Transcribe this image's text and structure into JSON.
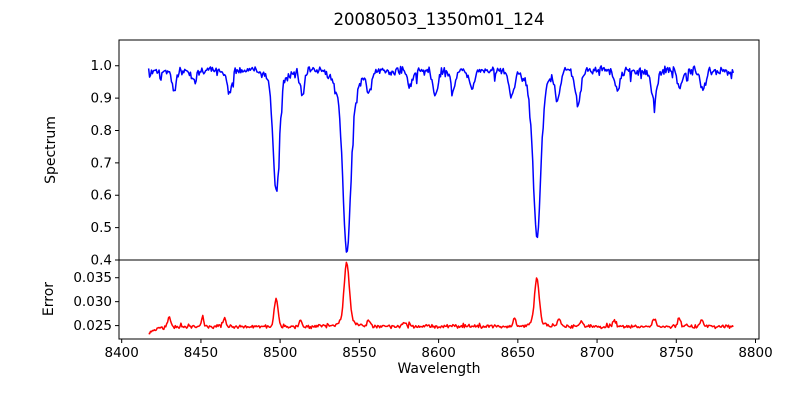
{
  "figure": {
    "background": "#ffffff",
    "axis_color": "#000000",
    "tick_label_color": "#000000"
  },
  "chart_data": {
    "type": "line",
    "title": "20080503_1350m01_124",
    "xlabel": "Wavelength",
    "legend": "none",
    "grid": false,
    "xlim": [
      8398.3,
      8802.2
    ],
    "xticks": [
      8400,
      8450,
      8500,
      8550,
      8600,
      8650,
      8700,
      8750,
      8800
    ],
    "xtick_labels": [
      "8400",
      "8450",
      "8500",
      "8550",
      "8600",
      "8650",
      "8700",
      "8750",
      "8800"
    ],
    "x_data_range": [
      8417,
      8786
    ],
    "x_step": 0.6,
    "panels": [
      {
        "id": "spectrum",
        "ylabel": "Spectrum",
        "line_color": "#0000ff",
        "ylim": [
          0.4,
          1.0795
        ],
        "yticks": [
          0.4,
          0.5,
          0.6,
          0.7,
          0.8,
          0.9,
          1.0
        ],
        "ytick_labels": [
          "0.4",
          "0.5",
          "0.6",
          "0.7",
          "0.8",
          "0.9",
          "1.0"
        ],
        "continuum": 0.985,
        "noise_amp": 0.016,
        "spike_prob": 0.07,
        "spike_amp": 0.035,
        "spike_sign": -1,
        "edge_ramp": {
          "amp": 0,
          "scale": 1
        },
        "features": [
          {
            "c": 8433,
            "a": -0.055,
            "w": 1.6
          },
          {
            "c": 8446,
            "a": -0.04,
            "w": 1.4
          },
          {
            "c": 8468,
            "a": -0.065,
            "w": 1.6
          },
          {
            "c": 8497.5,
            "a": -0.33,
            "w": 1.9
          },
          {
            "c": 8497.5,
            "a": -0.045,
            "w": 5.0
          },
          {
            "c": 8514,
            "a": -0.07,
            "w": 1.5
          },
          {
            "c": 8542.1,
            "a": -0.46,
            "w": 2.4
          },
          {
            "c": 8542.1,
            "a": -0.095,
            "w": 6.0
          },
          {
            "c": 8556,
            "a": -0.065,
            "w": 1.5
          },
          {
            "c": 8582,
            "a": -0.05,
            "w": 1.5
          },
          {
            "c": 8598,
            "a": -0.07,
            "w": 1.6
          },
          {
            "c": 8609,
            "a": -0.07,
            "w": 1.4
          },
          {
            "c": 8621,
            "a": -0.055,
            "w": 1.5
          },
          {
            "c": 8646,
            "a": -0.085,
            "w": 1.6
          },
          {
            "c": 8662.1,
            "a": -0.44,
            "w": 2.3
          },
          {
            "c": 8662.1,
            "a": -0.075,
            "w": 5.5
          },
          {
            "c": 8675,
            "a": -0.085,
            "w": 1.6
          },
          {
            "c": 8688,
            "a": -0.1,
            "w": 1.8
          },
          {
            "c": 8713,
            "a": -0.065,
            "w": 1.5
          },
          {
            "c": 8736,
            "a": -0.095,
            "w": 1.7
          },
          {
            "c": 8752,
            "a": -0.055,
            "w": 1.4
          },
          {
            "c": 8767,
            "a": -0.06,
            "w": 1.5
          }
        ],
        "approx_min_values": {
          "8498": 0.61,
          "8542": 0.43,
          "8662": 0.47
        },
        "continuum_band": [
          0.95,
          1.03
        ]
      },
      {
        "id": "error",
        "ylabel": "Error",
        "line_color": "#ff0000",
        "ylim": [
          0.0222,
          0.0387
        ],
        "yticks": [
          0.025,
          0.03,
          0.035
        ],
        "ytick_labels": [
          "0.025",
          "0.030",
          "0.035"
        ],
        "continuum": 0.0248,
        "noise_amp": 0.00045,
        "spike_prob": 0.06,
        "spike_amp": 0.0011,
        "spike_sign": 1,
        "edge_ramp": {
          "amp": -0.0014,
          "scale": 5
        },
        "features": [
          {
            "c": 8430,
            "a": 0.0021,
            "w": 0.9
          },
          {
            "c": 8451,
            "a": 0.0013,
            "w": 0.9
          },
          {
            "c": 8465,
            "a": 0.0016,
            "w": 0.9
          },
          {
            "c": 8497.5,
            "a": 0.0058,
            "w": 1.2
          },
          {
            "c": 8513,
            "a": 0.0011,
            "w": 0.9
          },
          {
            "c": 8542,
            "a": 0.0124,
            "w": 1.6
          },
          {
            "c": 8542,
            "a": 0.0009,
            "w": 5.0
          },
          {
            "c": 8556,
            "a": 0.0013,
            "w": 1.0
          },
          {
            "c": 8578,
            "a": 0.0008,
            "w": 1.2
          },
          {
            "c": 8648,
            "a": 0.0017,
            "w": 0.9
          },
          {
            "c": 8662,
            "a": 0.0089,
            "w": 1.4
          },
          {
            "c": 8662,
            "a": 0.0012,
            "w": 4.0
          },
          {
            "c": 8676,
            "a": 0.0017,
            "w": 1.0
          },
          {
            "c": 8690,
            "a": 0.0013,
            "w": 0.9
          },
          {
            "c": 8711,
            "a": 0.0013,
            "w": 1.0
          },
          {
            "c": 8736,
            "a": 0.0016,
            "w": 1.0
          },
          {
            "c": 8752,
            "a": 0.0015,
            "w": 0.9
          },
          {
            "c": 8766,
            "a": 0.0015,
            "w": 0.9
          }
        ],
        "approx_peak_values": {
          "8498": 0.031,
          "8542": 0.038,
          "8662": 0.034
        },
        "baseline_value": 0.0248
      }
    ]
  }
}
